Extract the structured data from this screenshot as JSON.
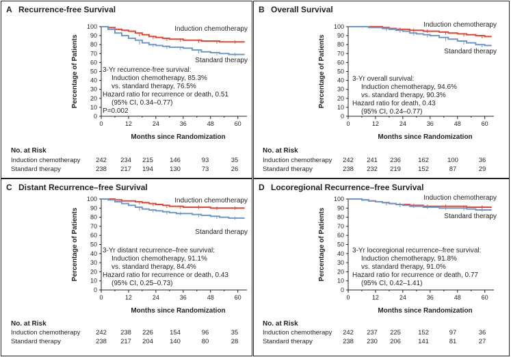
{
  "panels": [
    {
      "letter": "A",
      "title": "Recurrence-free Survival",
      "ylabel": "Percentage of Patients",
      "xlabel": "Months since Randomization",
      "curve_labels": [
        "Induction chemotherapy",
        "Standard therapy"
      ],
      "annotation": [
        "3-Yr recurrence-free survival:",
        "Induction chemotherapy, 85.3%",
        "vs. standard therapy, 76.5%",
        "Hazard ratio for recurrence or death, 0.51",
        "(95% CI, 0.34–0.77)",
        "P=0.002"
      ],
      "risk": {
        "title": "No. at Risk",
        "rows": [
          {
            "label": "Induction chemotherapy",
            "values": [
              "242",
              "234",
              "215",
              "146",
              "93",
              "35"
            ]
          },
          {
            "label": "Standard therapy",
            "values": [
              "238",
              "217",
              "194",
              "130",
              "73",
              "26"
            ]
          }
        ]
      }
    },
    {
      "letter": "B",
      "title": "Overall Survival",
      "ylabel": "Percentage of Patients",
      "xlabel": "Months since Randomization",
      "curve_labels": [
        "Induction chemotherapy",
        "Standard therapy"
      ],
      "annotation": [
        "3-Yr overall survival:",
        "Induction chemotherapy, 94.6%",
        "vs. standard therapy, 90.3%",
        "Hazard ratio for death, 0.43",
        "(95% CI, 0.24–0.77)"
      ],
      "risk": {
        "title": "No. at Risk",
        "rows": [
          {
            "label": "Induction chemotherapy",
            "values": [
              "242",
              "241",
              "236",
              "162",
              "100",
              "36"
            ]
          },
          {
            "label": "Standard therapy",
            "values": [
              "238",
              "232",
              "219",
              "152",
              "87",
              "29"
            ]
          }
        ]
      }
    },
    {
      "letter": "C",
      "title": "Distant Recurrence–free Survival",
      "ylabel": "Percentage of Patients",
      "xlabel": "Months since Randomization",
      "curve_labels": [
        "Induction chemotherapy",
        "Standard therapy"
      ],
      "annotation": [
        "3-Yr distant recurrence–free survival:",
        "Induction chemotherapy, 91.1%",
        "vs. standard therapy, 84.4%",
        "Hazard ratio for recurrence or death, 0.43",
        "(95% CI, 0.25–0.73)"
      ],
      "risk": {
        "title": "No. at Risk",
        "rows": [
          {
            "label": "Induction chemotherapy",
            "values": [
              "242",
              "238",
              "226",
              "154",
              "96",
              "35"
            ]
          },
          {
            "label": "Standard therapy",
            "values": [
              "238",
              "217",
              "204",
              "140",
              "80",
              "28"
            ]
          }
        ]
      }
    },
    {
      "letter": "D",
      "title": "Locoregional Recurrence–free Survival",
      "ylabel": "Percentage of Patients",
      "xlabel": "Months since Randomization",
      "curve_labels": [
        "Induction chemotherapy",
        "Standard therapy"
      ],
      "annotation": [
        "3-Yr locoregional recurrence–free survival:",
        "Induction chemotherapy, 91.8%",
        "vs. standard therapy, 91.0%",
        "Hazard ratio for recurrence or death, 0.77",
        "(95% CI, 0.42–1.41)"
      ],
      "risk": {
        "title": "No. at Risk",
        "rows": [
          {
            "label": "Induction chemotherapy",
            "values": [
              "242",
              "237",
              "225",
              "152",
              "97",
              "36"
            ]
          },
          {
            "label": "Standard therapy",
            "values": [
              "238",
              "230",
              "206",
              "141",
              "81",
              "27"
            ]
          }
        ]
      }
    }
  ],
  "colors": {
    "induction": "#e8432e",
    "standard": "#6b96cf",
    "text": "#231f20",
    "border": "#231f20"
  },
  "chart_data": [
    {
      "type": "line",
      "title": "Recurrence-free Survival",
      "xlabel": "Months since Randomization",
      "ylabel": "Percentage of Patients",
      "xlim": [
        0,
        64
      ],
      "ylim": [
        0,
        100
      ],
      "xticks": [
        0,
        12,
        24,
        36,
        48,
        60
      ],
      "yticks": [
        0,
        10,
        20,
        30,
        40,
        50,
        60,
        70,
        80,
        90,
        100
      ],
      "series": [
        {
          "name": "Induction chemotherapy",
          "x": [
            0,
            3,
            6,
            9,
            12,
            15,
            18,
            21,
            24,
            27,
            30,
            33,
            36,
            40,
            44,
            48,
            52,
            56,
            60,
            63
          ],
          "y": [
            100,
            99,
            97,
            96,
            95,
            93,
            91,
            89,
            88,
            87,
            86,
            86,
            85,
            85,
            84,
            84,
            83,
            83,
            83,
            83
          ]
        },
        {
          "name": "Standard therapy",
          "x": [
            0,
            3,
            6,
            9,
            12,
            15,
            18,
            21,
            24,
            27,
            30,
            33,
            36,
            40,
            44,
            48,
            52,
            56,
            60,
            63
          ],
          "y": [
            100,
            97,
            93,
            90,
            87,
            85,
            82,
            80,
            79,
            78,
            77,
            77,
            76,
            74,
            72,
            71,
            70,
            69,
            69,
            69
          ]
        }
      ]
    },
    {
      "type": "line",
      "title": "Overall Survival",
      "xlabel": "Months since Randomization",
      "ylabel": "Percentage of Patients",
      "xlim": [
        0,
        64
      ],
      "ylim": [
        0,
        100
      ],
      "xticks": [
        0,
        12,
        24,
        36,
        48,
        60
      ],
      "yticks": [
        0,
        10,
        20,
        30,
        40,
        50,
        60,
        70,
        80,
        90,
        100
      ],
      "series": [
        {
          "name": "Induction chemotherapy",
          "x": [
            0,
            3,
            6,
            9,
            12,
            15,
            18,
            21,
            24,
            27,
            30,
            33,
            36,
            40,
            44,
            48,
            52,
            56,
            60,
            63
          ],
          "y": [
            100,
            100,
            100,
            100,
            100,
            99,
            98,
            97,
            97,
            96,
            96,
            95,
            95,
            94,
            93,
            92,
            91,
            90,
            89,
            89
          ]
        },
        {
          "name": "Standard therapy",
          "x": [
            0,
            3,
            6,
            9,
            12,
            15,
            18,
            21,
            24,
            27,
            30,
            33,
            36,
            40,
            44,
            48,
            52,
            56,
            60,
            63
          ],
          "y": [
            100,
            100,
            100,
            99,
            99,
            98,
            97,
            96,
            95,
            93,
            92,
            91,
            90,
            88,
            86,
            84,
            82,
            80,
            79,
            79
          ]
        }
      ]
    },
    {
      "type": "line",
      "title": "Distant Recurrence–free Survival",
      "xlabel": "Months since Randomization",
      "ylabel": "Percentage of Patients",
      "xlim": [
        0,
        64
      ],
      "ylim": [
        0,
        100
      ],
      "xticks": [
        0,
        12,
        24,
        36,
        48,
        60
      ],
      "yticks": [
        0,
        10,
        20,
        30,
        40,
        50,
        60,
        70,
        80,
        90,
        100
      ],
      "series": [
        {
          "name": "Induction chemotherapy",
          "x": [
            0,
            3,
            6,
            9,
            12,
            15,
            18,
            21,
            24,
            27,
            30,
            33,
            36,
            40,
            44,
            48,
            52,
            56,
            60,
            63
          ],
          "y": [
            100,
            100,
            99,
            98,
            98,
            97,
            96,
            95,
            94,
            93,
            92,
            92,
            91,
            91,
            91,
            90,
            90,
            90,
            90,
            90
          ]
        },
        {
          "name": "Standard therapy",
          "x": [
            0,
            3,
            6,
            9,
            12,
            15,
            18,
            21,
            24,
            27,
            30,
            33,
            36,
            40,
            44,
            48,
            52,
            56,
            60,
            63
          ],
          "y": [
            100,
            99,
            97,
            95,
            93,
            91,
            89,
            88,
            87,
            86,
            85,
            84,
            84,
            83,
            82,
            81,
            80,
            79,
            79,
            79
          ]
        }
      ]
    },
    {
      "type": "line",
      "title": "Locoregional Recurrence–free Survival",
      "xlabel": "Months since Randomization",
      "ylabel": "Percentage of Patients",
      "xlim": [
        0,
        64
      ],
      "ylim": [
        0,
        100
      ],
      "xticks": [
        0,
        12,
        24,
        36,
        48,
        60
      ],
      "yticks": [
        0,
        10,
        20,
        30,
        40,
        50,
        60,
        70,
        80,
        90,
        100
      ],
      "series": [
        {
          "name": "Induction chemotherapy",
          "x": [
            0,
            3,
            6,
            9,
            12,
            15,
            18,
            21,
            24,
            27,
            30,
            33,
            36,
            40,
            44,
            48,
            52,
            56,
            60,
            63
          ],
          "y": [
            100,
            100,
            99,
            98,
            97,
            96,
            95,
            94,
            94,
            93,
            93,
            92,
            92,
            92,
            92,
            92,
            91,
            91,
            91,
            91
          ]
        },
        {
          "name": "Standard therapy",
          "x": [
            0,
            3,
            6,
            9,
            12,
            15,
            18,
            21,
            24,
            27,
            30,
            33,
            36,
            40,
            44,
            48,
            52,
            56,
            60,
            63
          ],
          "y": [
            100,
            100,
            99,
            98,
            97,
            96,
            95,
            94,
            93,
            92,
            92,
            91,
            91,
            90,
            90,
            90,
            89,
            88,
            88,
            88
          ]
        }
      ]
    }
  ]
}
